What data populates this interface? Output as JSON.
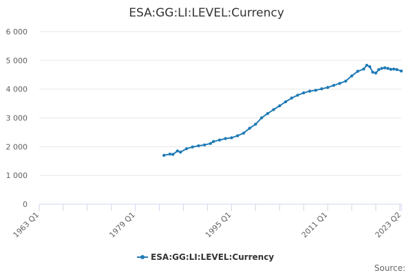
{
  "chart_data": {
    "type": "line",
    "title": "ESA:GG:LI:LEVEL:Currency",
    "xlabel": "",
    "ylabel": "",
    "x_range": [
      "1963 Q1",
      "2023 Q2"
    ],
    "x_tick_labels": [
      "1963 Q1",
      "1979 Q1",
      "1995 Q1",
      "2011 Q1",
      "2023 Q2"
    ],
    "ylim": [
      0,
      6000
    ],
    "y_ticks": [
      0,
      1000,
      2000,
      3000,
      4000,
      5000,
      6000
    ],
    "y_tick_labels": [
      "0",
      "1 000",
      "2 000",
      "3 000",
      "4 000",
      "5 000",
      "6 000"
    ],
    "grid": "horizontal",
    "legend_position": "bottom-center",
    "series": [
      {
        "name": "ESA:GG:LI:LEVEL:Currency",
        "color": "#1f7bb6",
        "points": [
          [
            "1983 Q4",
            1700
          ],
          [
            "1984 Q4",
            1740
          ],
          [
            "1985 Q2",
            1730
          ],
          [
            "1986 Q1",
            1850
          ],
          [
            "1986 Q3",
            1810
          ],
          [
            "1987 Q3",
            1930
          ],
          [
            "1988 Q3",
            1990
          ],
          [
            "1989 Q3",
            2030
          ],
          [
            "1990 Q3",
            2060
          ],
          [
            "1991 Q3",
            2110
          ],
          [
            "1992 Q1",
            2180
          ],
          [
            "1993 Q1",
            2230
          ],
          [
            "1994 Q1",
            2280
          ],
          [
            "1995 Q1",
            2310
          ],
          [
            "1996 Q1",
            2380
          ],
          [
            "1997 Q1",
            2470
          ],
          [
            "1998 Q1",
            2640
          ],
          [
            "1999 Q1",
            2780
          ],
          [
            "2000 Q1",
            3000
          ],
          [
            "2001 Q1",
            3150
          ],
          [
            "2002 Q1",
            3290
          ],
          [
            "2003 Q1",
            3420
          ],
          [
            "2004 Q1",
            3560
          ],
          [
            "2005 Q1",
            3690
          ],
          [
            "2006 Q1",
            3790
          ],
          [
            "2007 Q1",
            3870
          ],
          [
            "2008 Q1",
            3930
          ],
          [
            "2009 Q1",
            3960
          ],
          [
            "2010 Q1",
            4010
          ],
          [
            "2011 Q1",
            4060
          ],
          [
            "2012 Q1",
            4130
          ],
          [
            "2013 Q1",
            4200
          ],
          [
            "2014 Q1",
            4280
          ],
          [
            "2015 Q1",
            4460
          ],
          [
            "2016 Q1",
            4620
          ],
          [
            "2017 Q1",
            4700
          ],
          [
            "2017 Q3",
            4830
          ],
          [
            "2018 Q1",
            4780
          ],
          [
            "2018 Q3",
            4590
          ],
          [
            "2019 Q1",
            4560
          ],
          [
            "2019 Q3",
            4680
          ],
          [
            "2020 Q1",
            4720
          ],
          [
            "2020 Q3",
            4740
          ],
          [
            "2021 Q1",
            4720
          ],
          [
            "2021 Q3",
            4690
          ],
          [
            "2022 Q1",
            4700
          ],
          [
            "2022 Q3",
            4680
          ],
          [
            "2023 Q2",
            4630
          ]
        ]
      }
    ]
  },
  "credits": "Source:"
}
